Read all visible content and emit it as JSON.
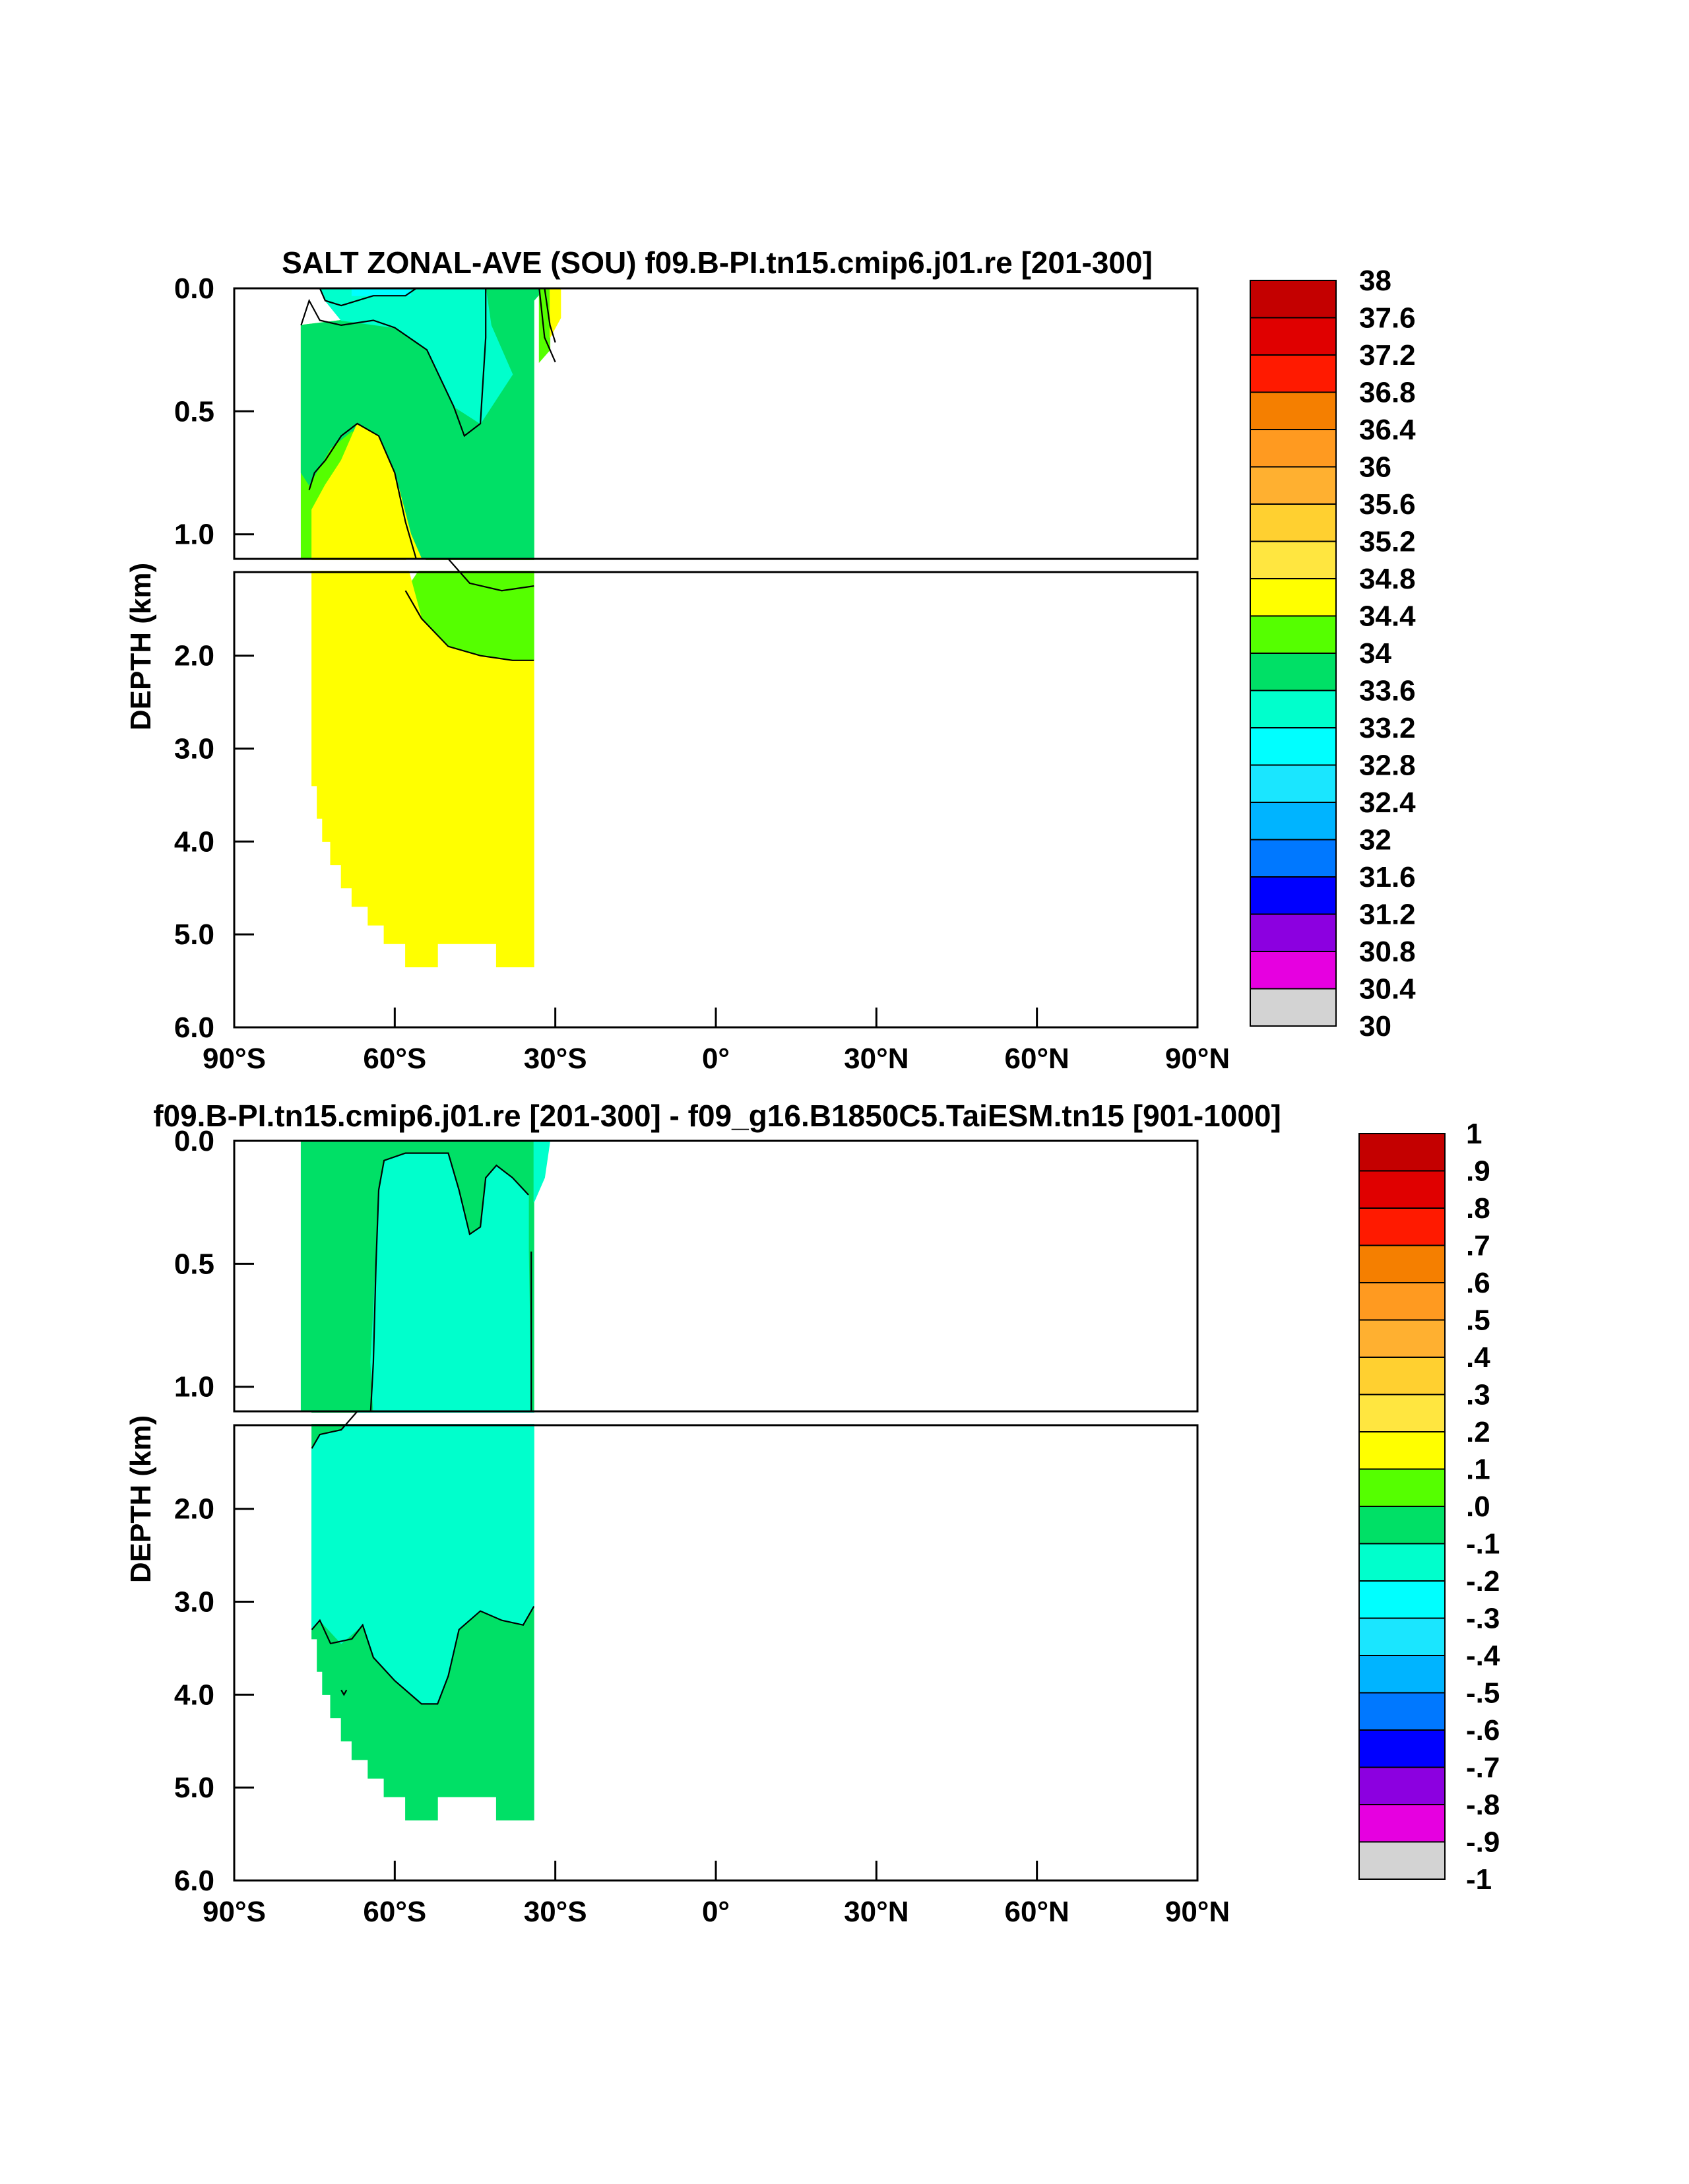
{
  "chart_data": [
    {
      "type": "heatmap",
      "title": "SALT ZONAL-AVE (SOU) f09.B-PI.tn15.cmip6.j01.re [201-300]",
      "ylabel": "DEPTH (km)",
      "xlim": [
        -90,
        90
      ],
      "ylim": [
        6.0,
        0.0
      ],
      "split_depth": 1.1,
      "x_ticks": [
        -90,
        -60,
        -30,
        0,
        30,
        60,
        90
      ],
      "x_tick_labels": [
        "90°S",
        "60°S",
        "30°S",
        "0°",
        "30°N",
        "60°N",
        "90°N"
      ],
      "y_tick_labels_upper": [
        "0.0",
        "0.5",
        "1.0"
      ],
      "y_ticks_upper": [
        0.0,
        0.5,
        1.0
      ],
      "y_tick_labels_lower": [
        "2.0",
        "3.0",
        "4.0",
        "5.0",
        "6.0"
      ],
      "y_ticks_lower": [
        2.0,
        3.0,
        4.0,
        5.0,
        6.0
      ],
      "colorbar_labels": [
        "38",
        "37.6",
        "37.2",
        "36.8",
        "36.4",
        "36",
        "35.6",
        "35.2",
        "34.8",
        "34.4",
        "34",
        "33.6",
        "33.2",
        "32.8",
        "32.4",
        "32",
        "31.6",
        "31.2",
        "30.8",
        "30.4",
        "30"
      ],
      "regions": [
        {
          "level": "34.4-34.8",
          "color": "#55ff00",
          "points": [
            [
              -77.5,
              0.15
            ],
            [
              -70,
              0.13
            ],
            [
              -60,
              0.16
            ],
            [
              -54,
              0.25
            ],
            [
              -49,
              0.48
            ],
            [
              -47,
              0.6
            ],
            [
              -44,
              0.55
            ],
            [
              -43,
              0.2
            ],
            [
              -43,
              0.0
            ],
            [
              -34,
              0.0
            ],
            [
              -34,
              1.1
            ],
            [
              -77.5,
              1.1
            ]
          ]
        },
        {
          "level": "34.4-34.8 lower",
          "color": "#55ff00",
          "points": [
            [
              -54,
              1.1
            ],
            [
              -34,
              1.1
            ],
            [
              -34,
              2.05
            ],
            [
              -38,
              2.05
            ],
            [
              -44,
              2.0
            ],
            [
              -50,
              1.9
            ],
            [
              -55,
              1.6
            ],
            [
              -58,
              1.3
            ]
          ]
        },
        {
          "level": "34.0-34.4",
          "color": "#00e066",
          "points": [
            [
              -70,
              0.0
            ],
            [
              -32,
              0.0
            ],
            [
              -32,
              0.0
            ],
            [
              -34,
              0.05
            ],
            [
              -34,
              1.1
            ],
            [
              -56,
              1.1
            ],
            [
              -58,
              0.95
            ],
            [
              -60,
              0.75
            ],
            [
              -64,
              0.6
            ],
            [
              -68,
              0.58
            ],
            [
              -72,
              0.65
            ],
            [
              -76,
              0.8
            ],
            [
              -77.5,
              0.75
            ],
            [
              -77.5,
              0.15
            ],
            [
              -70,
              0.13
            ]
          ]
        },
        {
          "level": "33.6-34.0",
          "color": "#00ffcc",
          "points": [
            [
              -74,
              0.0
            ],
            [
              -43,
              0.0
            ],
            [
              -42,
              0.15
            ],
            [
              -38,
              0.35
            ],
            [
              -44,
              0.55
            ],
            [
              -49,
              0.48
            ],
            [
              -54,
              0.25
            ],
            [
              -60,
              0.16
            ],
            [
              -70,
              0.13
            ],
            [
              -73,
              0.05
            ]
          ]
        },
        {
          "level": "33.2-33.6",
          "color": "#00ffff",
          "points": [
            [
              -68,
              0.0
            ],
            [
              -57,
              0.0
            ],
            [
              -57,
              0.03
            ],
            [
              -68,
              0.03
            ]
          ]
        },
        {
          "level": "34.8-35.2",
          "color": "#ffff00",
          "points": [
            [
              -75.5,
              1.1
            ],
            [
              -75.5,
              0.9
            ],
            [
              -73,
              0.8
            ],
            [
              -70,
              0.7
            ],
            [
              -67,
              0.55
            ],
            [
              -63,
              0.6
            ],
            [
              -60,
              0.75
            ],
            [
              -57,
              1.0
            ],
            [
              -55,
              1.1
            ]
          ]
        },
        {
          "level": "34.8-35.2 lower",
          "color": "#ffff00",
          "points": [
            [
              -75.5,
              1.1
            ],
            [
              -58,
              1.1
            ],
            [
              -55,
              1.6
            ],
            [
              -50,
              1.9
            ],
            [
              -44,
              2.0
            ],
            [
              -38,
              2.05
            ],
            [
              -34,
              2.05
            ],
            [
              -34,
              5.35
            ],
            [
              -41,
              5.35
            ],
            [
              -41,
              5.1
            ],
            [
              -52,
              5.1
            ],
            [
              -52,
              5.35
            ],
            [
              -58,
              5.35
            ],
            [
              -58,
              5.1
            ],
            [
              -62,
              5.1
            ],
            [
              -62,
              4.9
            ],
            [
              -65,
              4.9
            ],
            [
              -65,
              4.7
            ],
            [
              -68,
              4.7
            ],
            [
              -68,
              4.5
            ],
            [
              -70,
              4.5
            ],
            [
              -70,
              4.25
            ],
            [
              -72,
              4.25
            ],
            [
              -72,
              4.0
            ],
            [
              -73.5,
              4.0
            ],
            [
              -73.5,
              3.75
            ],
            [
              -74.5,
              3.75
            ],
            [
              -74.5,
              3.4
            ],
            [
              -75.5,
              3.4
            ]
          ]
        },
        {
          "level": "34.4 near 30S",
          "color": "#55ff00",
          "points": [
            [
              -33,
              0.0
            ],
            [
              -31,
              0.0
            ],
            [
              -31,
              0.25
            ],
            [
              -33,
              0.3
            ]
          ]
        },
        {
          "level": "34.8 near 30S",
          "color": "#ffff00",
          "points": [
            [
              -31,
              0.0
            ],
            [
              -29,
              0.0
            ],
            [
              -29,
              0.12
            ],
            [
              -31,
              0.2
            ]
          ]
        }
      ]
    },
    {
      "type": "heatmap",
      "title": "f09.B-PI.tn15.cmip6.j01.re [201-300] - f09_g16.B1850C5.TaiESM.tn15 [901-1000]",
      "ylabel": "DEPTH (km)",
      "xlim": [
        -90,
        90
      ],
      "ylim": [
        6.0,
        0.0
      ],
      "split_depth": 1.1,
      "x_ticks": [
        -90,
        -60,
        -30,
        0,
        30,
        60,
        90
      ],
      "x_tick_labels": [
        "90°S",
        "60°S",
        "30°S",
        "0°",
        "30°N",
        "60°N",
        "90°N"
      ],
      "y_tick_labels_upper": [
        "0.0",
        "0.5",
        "1.0"
      ],
      "y_ticks_upper": [
        0.0,
        0.5,
        1.0
      ],
      "y_tick_labels_lower": [
        "2.0",
        "3.0",
        "4.0",
        "5.0",
        "6.0"
      ],
      "y_ticks_lower": [
        2.0,
        3.0,
        4.0,
        5.0,
        6.0
      ],
      "colorbar_labels": [
        "1",
        ".9",
        ".8",
        ".7",
        ".6",
        ".5",
        ".4",
        ".3",
        ".2",
        ".1",
        ".0",
        "-.1",
        "-.2",
        "-.3",
        "-.4",
        "-.5",
        "-.6",
        "-.7",
        "-.8",
        "-.9",
        "-1"
      ],
      "regions": [
        {
          "level": "0.0-0.1",
          "color": "#00e066",
          "points": [
            [
              -77.5,
              0.0
            ],
            [
              -34,
              0.0
            ],
            [
              -34,
              1.1
            ],
            [
              -77.5,
              1.1
            ]
          ]
        },
        {
          "level": "0.0-0.1 lower",
          "color": "#00e066",
          "points": [
            [
              -75.5,
              1.1
            ],
            [
              -34,
              1.1
            ],
            [
              -34,
              5.35
            ],
            [
              -41,
              5.35
            ],
            [
              -41,
              5.1
            ],
            [
              -52,
              5.1
            ],
            [
              -52,
              5.35
            ],
            [
              -58,
              5.35
            ],
            [
              -58,
              5.1
            ],
            [
              -62,
              5.1
            ],
            [
              -62,
              4.9
            ],
            [
              -65,
              4.9
            ],
            [
              -65,
              4.7
            ],
            [
              -68,
              4.7
            ],
            [
              -68,
              4.5
            ],
            [
              -70,
              4.5
            ],
            [
              -70,
              4.25
            ],
            [
              -72,
              4.25
            ],
            [
              -72,
              4.0
            ],
            [
              -73.5,
              4.0
            ],
            [
              -73.5,
              3.75
            ],
            [
              -74.5,
              3.75
            ],
            [
              -74.5,
              3.4
            ],
            [
              -75.5,
              3.4
            ]
          ]
        },
        {
          "level": "-0.1-0.0",
          "color": "#00ffcc",
          "points": [
            [
              -63,
              0.2
            ],
            [
              -62,
              0.08
            ],
            [
              -58,
              0.05
            ],
            [
              -50,
              0.05
            ],
            [
              -48,
              0.2
            ],
            [
              -46,
              0.38
            ],
            [
              -44,
              0.35
            ],
            [
              -43,
              0.15
            ],
            [
              -41,
              0.1
            ],
            [
              -38,
              0.15
            ],
            [
              -35,
              0.22
            ],
            [
              -35,
              0.45
            ],
            [
              -34.5,
              1.1
            ],
            [
              -64,
              1.1
            ],
            [
              -64.5,
              0.9
            ],
            [
              -63.5,
              0.5
            ]
          ]
        },
        {
          "level": "-0.1-0.0 lower",
          "color": "#00ffcc",
          "points": [
            [
              -75.5,
              1.35
            ],
            [
              -74,
              1.2
            ],
            [
              -70,
              1.15
            ],
            [
              -67,
              1.1
            ],
            [
              -34,
              1.1
            ],
            [
              -34,
              3.05
            ],
            [
              -36,
              3.25
            ],
            [
              -40,
              3.2
            ],
            [
              -44,
              3.1
            ],
            [
              -48,
              3.3
            ],
            [
              -50,
              3.8
            ],
            [
              -52,
              4.1
            ],
            [
              -55,
              4.1
            ],
            [
              -60,
              3.85
            ],
            [
              -64,
              3.6
            ],
            [
              -66,
              3.25
            ],
            [
              -70,
              3.45
            ],
            [
              -74,
              3.2
            ],
            [
              -75.5,
              3.3
            ]
          ]
        },
        {
          "level": "near 30S",
          "color": "#00ffcc",
          "points": [
            [
              -34,
              0.0
            ],
            [
              -31,
              0.0
            ],
            [
              -32,
              0.15
            ],
            [
              -34,
              0.25
            ]
          ]
        }
      ]
    }
  ]
}
